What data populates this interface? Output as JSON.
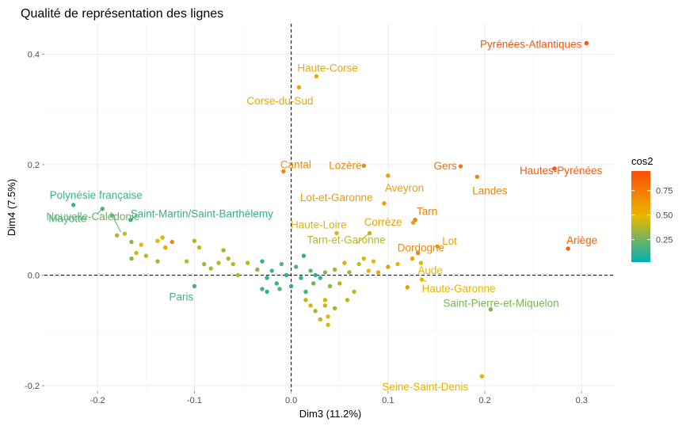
{
  "chart_data": {
    "type": "scatter",
    "title": "Qualité de représentation des lignes",
    "xlabel": "Dim3 (11.2%)",
    "ylabel": "Dim4 (7.5%)",
    "xlim": [
      -0.255,
      0.335
    ],
    "ylim": [
      -0.21,
      0.455
    ],
    "x_ticks": [
      -0.2,
      -0.1,
      0.0,
      0.1,
      0.2,
      0.3
    ],
    "x_tick_labels": [
      "-0.2",
      "-0.1",
      "0.0",
      "0.1",
      "0.2",
      "0.3"
    ],
    "y_ticks": [
      -0.2,
      0.0,
      0.2,
      0.4
    ],
    "y_tick_labels": [
      "-0.2",
      "0.0",
      "0.2",
      "0.4"
    ],
    "grid": true,
    "reference_lines": {
      "x": 0,
      "y": 0,
      "style": "dashed"
    },
    "colors": {
      "low": "#00AFBB",
      "mid": "#E7B800",
      "high": "#FC4E07"
    },
    "legend": {
      "title": "cos2",
      "position": "right",
      "ticks": [
        0.25,
        0.5,
        0.75
      ],
      "tick_labels": [
        "0.25",
        "0.50",
        "0.75"
      ],
      "range": [
        0.02,
        0.95
      ]
    },
    "points": [
      {
        "x": 0.305,
        "y": 0.42,
        "cos2": 0.93,
        "label": "Pyrénées-Atlantiques"
      },
      {
        "x": 0.026,
        "y": 0.36,
        "cos2": 0.55,
        "label": "Haute-Corse"
      },
      {
        "x": 0.008,
        "y": 0.34,
        "cos2": 0.55,
        "label": "Corse-du-Sud"
      },
      {
        "x": -0.008,
        "y": 0.188,
        "cos2": 0.68,
        "label": "Cantal"
      },
      {
        "x": 0.075,
        "y": 0.198,
        "cos2": 0.7,
        "label": "Lozère"
      },
      {
        "x": 0.175,
        "y": 0.197,
        "cos2": 0.78,
        "label": "Gers"
      },
      {
        "x": 0.272,
        "y": 0.193,
        "cos2": 0.9,
        "label": "Hautes-Pyrénées"
      },
      {
        "x": 0.192,
        "y": 0.178,
        "cos2": 0.72,
        "label": "Landes"
      },
      {
        "x": 0.1,
        "y": 0.18,
        "cos2": 0.6,
        "label": "Aveyron"
      },
      {
        "x": 0.096,
        "y": 0.13,
        "cos2": 0.62,
        "label": "Lot-et-Garonne"
      },
      {
        "x": 0.128,
        "y": 0.1,
        "cos2": 0.72,
        "label": "Tarn"
      },
      {
        "x": 0.126,
        "y": 0.095,
        "cos2": 0.58,
        "label": "Corrèze"
      },
      {
        "x": 0.286,
        "y": 0.048,
        "cos2": 0.87,
        "label": "Ariège"
      },
      {
        "x": 0.151,
        "y": 0.052,
        "cos2": 0.58,
        "label": "Lot"
      },
      {
        "x": 0.131,
        "y": 0.04,
        "cos2": 0.7,
        "label": "Dordogne"
      },
      {
        "x": 0.134,
        "y": 0.022,
        "cos2": 0.5,
        "label": "Aude"
      },
      {
        "x": 0.047,
        "y": 0.076,
        "cos2": 0.45,
        "label": "Haute-Loire"
      },
      {
        "x": 0.081,
        "y": 0.076,
        "cos2": 0.4,
        "label": "Tarn-et-Garonne"
      },
      {
        "x": 0.135,
        "y": -0.008,
        "cos2": 0.5,
        "label": "Haute-Garonne"
      },
      {
        "x": 0.206,
        "y": -0.062,
        "cos2": 0.27,
        "label": "Saint-Pierre-et-Miquelon"
      },
      {
        "x": 0.197,
        "y": -0.183,
        "cos2": 0.52,
        "label": "Seine-Saint-Denis"
      },
      {
        "x": -0.225,
        "y": 0.127,
        "cos2": 0.15,
        "label": "Polynésie française"
      },
      {
        "x": -0.195,
        "y": 0.12,
        "cos2": 0.18,
        "label": "Mayotte"
      },
      {
        "x": -0.166,
        "y": 0.1,
        "cos2": 0.12,
        "label": "Saint-Martin/Saint-Barthélemy"
      },
      {
        "x": -0.185,
        "y": 0.108,
        "cos2": 0.22,
        "label": "Nouvelle-Calédonie"
      },
      {
        "x": -0.1,
        "y": -0.02,
        "cos2": 0.16,
        "label": "Paris"
      },
      {
        "x": -0.18,
        "y": 0.072,
        "cos2": 0.38
      },
      {
        "x": -0.172,
        "y": 0.075,
        "cos2": 0.42
      },
      {
        "x": -0.165,
        "y": 0.06,
        "cos2": 0.3
      },
      {
        "x": -0.16,
        "y": 0.04,
        "cos2": 0.45
      },
      {
        "x": -0.155,
        "y": 0.055,
        "cos2": 0.5
      },
      {
        "x": -0.15,
        "y": 0.035,
        "cos2": 0.4
      },
      {
        "x": -0.165,
        "y": 0.03,
        "cos2": 0.3
      },
      {
        "x": -0.138,
        "y": 0.062,
        "cos2": 0.5
      },
      {
        "x": -0.133,
        "y": 0.068,
        "cos2": 0.45
      },
      {
        "x": -0.13,
        "y": 0.05,
        "cos2": 0.55
      },
      {
        "x": -0.123,
        "y": 0.06,
        "cos2": 0.7
      },
      {
        "x": -0.138,
        "y": 0.025,
        "cos2": 0.35
      },
      {
        "x": -0.1,
        "y": 0.062,
        "cos2": 0.38
      },
      {
        "x": -0.108,
        "y": 0.025,
        "cos2": 0.4
      },
      {
        "x": -0.09,
        "y": 0.02,
        "cos2": 0.35
      },
      {
        "x": -0.095,
        "y": 0.05,
        "cos2": 0.42
      },
      {
        "x": -0.083,
        "y": 0.012,
        "cos2": 0.38
      },
      {
        "x": -0.075,
        "y": 0.022,
        "cos2": 0.4
      },
      {
        "x": -0.07,
        "y": 0.045,
        "cos2": 0.35
      },
      {
        "x": -0.065,
        "y": 0.03,
        "cos2": 0.38
      },
      {
        "x": -0.06,
        "y": 0.02,
        "cos2": 0.4
      },
      {
        "x": -0.055,
        "y": 0.0,
        "cos2": 0.4
      },
      {
        "x": -0.045,
        "y": 0.022,
        "cos2": 0.38
      },
      {
        "x": -0.035,
        "y": 0.01,
        "cos2": 0.3
      },
      {
        "x": -0.03,
        "y": 0.025,
        "cos2": 0.12
      },
      {
        "x": -0.025,
        "y": -0.005,
        "cos2": 0.1
      },
      {
        "x": -0.02,
        "y": 0.008,
        "cos2": 0.15
      },
      {
        "x": -0.015,
        "y": -0.015,
        "cos2": 0.12
      },
      {
        "x": -0.01,
        "y": 0.02,
        "cos2": 0.18
      },
      {
        "x": -0.005,
        "y": 0.0,
        "cos2": 0.08
      },
      {
        "x": 0.0,
        "y": -0.02,
        "cos2": 0.1
      },
      {
        "x": 0.005,
        "y": 0.015,
        "cos2": 0.2
      },
      {
        "x": 0.01,
        "y": -0.005,
        "cos2": 0.12
      },
      {
        "x": 0.013,
        "y": 0.035,
        "cos2": 0.1
      },
      {
        "x": 0.015,
        "y": -0.03,
        "cos2": 0.15
      },
      {
        "x": 0.02,
        "y": 0.008,
        "cos2": 0.22
      },
      {
        "x": 0.023,
        "y": -0.015,
        "cos2": 0.25
      },
      {
        "x": 0.025,
        "y": 0.0,
        "cos2": 0.1
      },
      {
        "x": -0.03,
        "y": -0.025,
        "cos2": 0.15
      },
      {
        "x": -0.025,
        "y": -0.03,
        "cos2": 0.12
      },
      {
        "x": -0.012,
        "y": -0.025,
        "cos2": 0.2
      },
      {
        "x": 0.03,
        "y": -0.005,
        "cos2": 0.12
      },
      {
        "x": 0.035,
        "y": 0.005,
        "cos2": 0.3
      },
      {
        "x": 0.04,
        "y": -0.02,
        "cos2": 0.3
      },
      {
        "x": 0.045,
        "y": 0.01,
        "cos2": 0.35
      },
      {
        "x": 0.05,
        "y": -0.015,
        "cos2": 0.4
      },
      {
        "x": 0.055,
        "y": 0.022,
        "cos2": 0.45
      },
      {
        "x": 0.06,
        "y": 0.005,
        "cos2": 0.35
      },
      {
        "x": 0.065,
        "y": -0.03,
        "cos2": 0.4
      },
      {
        "x": 0.07,
        "y": 0.02,
        "cos2": 0.42
      },
      {
        "x": 0.075,
        "y": 0.03,
        "cos2": 0.45
      },
      {
        "x": 0.08,
        "y": 0.008,
        "cos2": 0.5
      },
      {
        "x": 0.085,
        "y": 0.025,
        "cos2": 0.5
      },
      {
        "x": 0.09,
        "y": 0.005,
        "cos2": 0.55
      },
      {
        "x": 0.1,
        "y": 0.015,
        "cos2": 0.6
      },
      {
        "x": 0.11,
        "y": 0.02,
        "cos2": 0.5
      },
      {
        "x": 0.015,
        "y": -0.045,
        "cos2": 0.4
      },
      {
        "x": 0.02,
        "y": -0.055,
        "cos2": 0.45
      },
      {
        "x": 0.025,
        "y": -0.065,
        "cos2": 0.35
      },
      {
        "x": 0.035,
        "y": -0.055,
        "cos2": 0.42
      },
      {
        "x": 0.035,
        "y": -0.045,
        "cos2": 0.55
      },
      {
        "x": 0.038,
        "y": -0.075,
        "cos2": 0.5
      },
      {
        "x": 0.03,
        "y": -0.08,
        "cos2": 0.4
      },
      {
        "x": 0.038,
        "y": -0.09,
        "cos2": 0.45
      },
      {
        "x": 0.058,
        "y": -0.045,
        "cos2": 0.4
      },
      {
        "x": 0.045,
        "y": -0.06,
        "cos2": 0.35
      },
      {
        "x": 0.125,
        "y": 0.03,
        "cos2": 0.55
      },
      {
        "x": 0.12,
        "y": -0.022,
        "cos2": 0.62
      }
    ],
    "leaders": [
      {
        "label": "Saint-Martin/Saint-Barthélemy",
        "from": [
          -0.166,
          0.1
        ],
        "to": [
          -0.16,
          0.108
        ]
      },
      {
        "label": "Nouvelle-Calédonie",
        "from": [
          -0.185,
          0.108
        ],
        "to": [
          -0.176,
          0.078
        ]
      },
      {
        "label": "Mayotte",
        "from": [
          -0.195,
          0.12
        ],
        "to": [
          -0.2,
          0.112
        ]
      },
      {
        "label": "Tarn-et-Garonne",
        "from": [
          0.081,
          0.076
        ],
        "to": [
          0.067,
          0.057
        ]
      },
      {
        "label": "Haute-Garonne",
        "from": [
          0.135,
          -0.008
        ],
        "to": [
          0.14,
          -0.012
        ]
      }
    ]
  }
}
